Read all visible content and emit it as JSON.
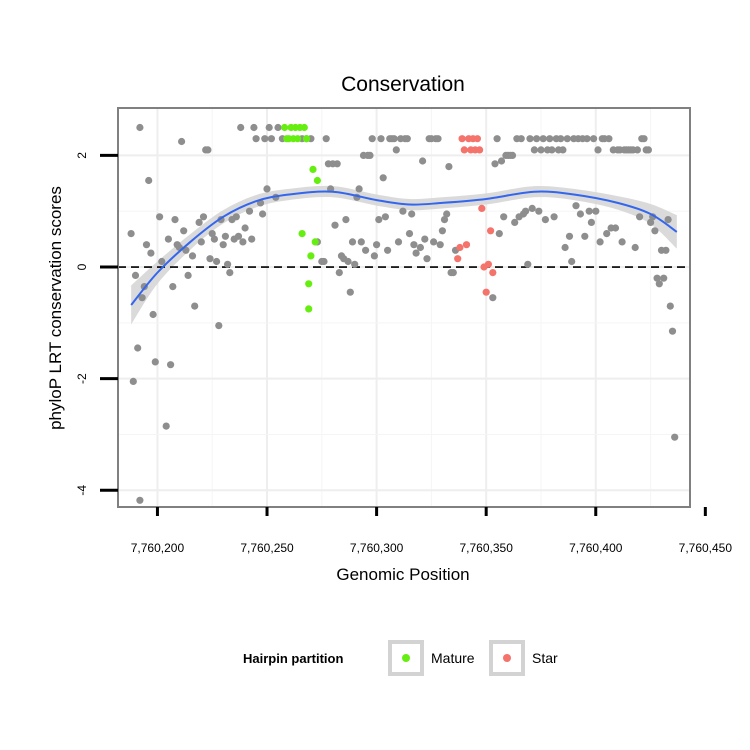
{
  "chart_data": {
    "type": "scatter",
    "title": "Conservation",
    "xlabel": "Genomic Position",
    "ylabel": "phyloP LRT conservation scores",
    "xlim": [
      7760182,
      7760443
    ],
    "ylim": [
      -4.3,
      2.85
    ],
    "x_ticks": [
      7760200,
      7760250,
      7760300,
      7760350,
      7760400,
      7760450
    ],
    "x_tick_labels": [
      "7,760,200",
      "7,760,250",
      "7,760,300",
      "7,760,350",
      "7,760,400",
      "7,760,450"
    ],
    "y_ticks": [
      -4,
      -2,
      0,
      2
    ],
    "y_tick_labels": [
      "-4",
      "-2",
      "0",
      "2"
    ],
    "grid": true,
    "reference_line": {
      "y": 0,
      "style": "dashed"
    },
    "legend": {
      "title": "Hairpin partition",
      "position": "bottom",
      "entries": [
        {
          "label": "Mature",
          "color": "#66ee11"
        },
        {
          "label": "Star",
          "color": "#f4736b"
        }
      ]
    },
    "colors": {
      "other": "#8e8e8e",
      "mature": "#66ee11",
      "star": "#f4736b",
      "smooth": "#3366ee",
      "ribbon": "#d3d3d3",
      "panel_border": "#808080"
    },
    "series": [
      {
        "group": "other",
        "points": [
          [
            7760188,
            0.6
          ],
          [
            7760189,
            -2.05
          ],
          [
            7760190,
            -0.15
          ],
          [
            7760191,
            -1.45
          ],
          [
            7760192,
            2.5
          ],
          [
            7760192,
            -4.18
          ],
          [
            7760193,
            -0.55
          ],
          [
            7760194,
            -0.35
          ],
          [
            7760195,
            0.4
          ],
          [
            7760196,
            1.55
          ],
          [
            7760197,
            0.25
          ],
          [
            7760198,
            -0.85
          ],
          [
            7760199,
            -1.7
          ],
          [
            7760201,
            0.9
          ],
          [
            7760202,
            0.1
          ],
          [
            7760204,
            -2.85
          ],
          [
            7760205,
            0.5
          ],
          [
            7760206,
            -1.75
          ],
          [
            7760207,
            -0.35
          ],
          [
            7760208,
            0.85
          ],
          [
            7760209,
            0.4
          ],
          [
            7760210,
            0.35
          ],
          [
            7760211,
            2.25
          ],
          [
            7760212,
            0.65
          ],
          [
            7760213,
            0.3
          ],
          [
            7760214,
            -0.15
          ],
          [
            7760216,
            0.2
          ],
          [
            7760217,
            -0.7
          ],
          [
            7760219,
            0.8
          ],
          [
            7760220,
            0.45
          ],
          [
            7760221,
            0.9
          ],
          [
            7760222,
            2.1
          ],
          [
            7760223,
            2.1
          ],
          [
            7760224,
            0.15
          ],
          [
            7760225,
            0.6
          ],
          [
            7760226,
            0.5
          ],
          [
            7760227,
            0.1
          ],
          [
            7760228,
            -1.05
          ],
          [
            7760229,
            0.85
          ],
          [
            7760230,
            0.4
          ],
          [
            7760231,
            0.55
          ],
          [
            7760232,
            0.05
          ],
          [
            7760233,
            -0.1
          ],
          [
            7760234,
            0.85
          ],
          [
            7760235,
            0.5
          ],
          [
            7760236,
            0.9
          ],
          [
            7760237,
            0.55
          ],
          [
            7760238,
            2.5
          ],
          [
            7760239,
            0.45
          ],
          [
            7760240,
            0.7
          ],
          [
            7760242,
            1.0
          ],
          [
            7760243,
            0.5
          ],
          [
            7760244,
            2.5
          ],
          [
            7760245,
            2.3
          ],
          [
            7760247,
            1.15
          ],
          [
            7760248,
            0.95
          ],
          [
            7760249,
            2.3
          ],
          [
            7760250,
            1.4
          ],
          [
            7760251,
            2.5
          ],
          [
            7760252,
            2.3
          ],
          [
            7760254,
            1.25
          ],
          [
            7760255,
            2.5
          ],
          [
            7760257,
            2.3
          ],
          [
            7760266,
            2.3
          ],
          [
            7760268,
            2.3
          ],
          [
            7760270,
            2.3
          ],
          [
            7760273,
            0.45
          ],
          [
            7760275,
            0.1
          ],
          [
            7760276,
            0.1
          ],
          [
            7760277,
            2.3
          ],
          [
            7760278,
            1.85
          ],
          [
            7760279,
            1.4
          ],
          [
            7760280,
            1.85
          ],
          [
            7760281,
            0.75
          ],
          [
            7760282,
            1.85
          ],
          [
            7760283,
            -0.1
          ],
          [
            7760284,
            0.2
          ],
          [
            7760285,
            0.15
          ],
          [
            7760286,
            0.85
          ],
          [
            7760287,
            0.1
          ],
          [
            7760288,
            -0.45
          ],
          [
            7760289,
            0.45
          ],
          [
            7760290,
            0.05
          ],
          [
            7760291,
            1.25
          ],
          [
            7760292,
            1.4
          ],
          [
            7760293,
            0.45
          ],
          [
            7760294,
            2.0
          ],
          [
            7760295,
            0.3
          ],
          [
            7760296,
            2.0
          ],
          [
            7760297,
            2.0
          ],
          [
            7760298,
            2.3
          ],
          [
            7760299,
            0.2
          ],
          [
            7760300,
            0.4
          ],
          [
            7760301,
            0.85
          ],
          [
            7760302,
            2.3
          ],
          [
            7760303,
            1.6
          ],
          [
            7760304,
            0.9
          ],
          [
            7760305,
            0.3
          ],
          [
            7760306,
            2.3
          ],
          [
            7760307,
            2.3
          ],
          [
            7760308,
            2.3
          ],
          [
            7760309,
            2.1
          ],
          [
            7760310,
            0.45
          ],
          [
            7760311,
            2.3
          ],
          [
            7760312,
            1.0
          ],
          [
            7760313,
            2.3
          ],
          [
            7760314,
            2.3
          ],
          [
            7760315,
            0.6
          ],
          [
            7760316,
            0.95
          ],
          [
            7760317,
            0.4
          ],
          [
            7760318,
            0.25
          ],
          [
            7760320,
            0.35
          ],
          [
            7760321,
            1.9
          ],
          [
            7760322,
            0.5
          ],
          [
            7760323,
            0.15
          ],
          [
            7760324,
            2.3
          ],
          [
            7760325,
            2.3
          ],
          [
            7760326,
            0.45
          ],
          [
            7760327,
            2.3
          ],
          [
            7760328,
            2.3
          ],
          [
            7760329,
            0.4
          ],
          [
            7760330,
            0.65
          ],
          [
            7760331,
            0.85
          ],
          [
            7760332,
            0.95
          ],
          [
            7760333,
            1.8
          ],
          [
            7760334,
            -0.1
          ],
          [
            7760335,
            -0.1
          ],
          [
            7760336,
            0.3
          ],
          [
            7760353,
            -0.55
          ],
          [
            7760354,
            1.85
          ],
          [
            7760355,
            2.3
          ],
          [
            7760356,
            0.6
          ],
          [
            7760357,
            1.9
          ],
          [
            7760358,
            0.9
          ],
          [
            7760359,
            2.0
          ],
          [
            7760360,
            2.0
          ],
          [
            7760361,
            2.0
          ],
          [
            7760362,
            2.0
          ],
          [
            7760363,
            0.8
          ],
          [
            7760364,
            2.3
          ],
          [
            7760365,
            0.9
          ],
          [
            7760366,
            2.3
          ],
          [
            7760367,
            0.95
          ],
          [
            7760368,
            1.0
          ],
          [
            7760369,
            0.05
          ],
          [
            7760370,
            2.3
          ],
          [
            7760371,
            1.05
          ],
          [
            7760372,
            2.1
          ],
          [
            7760373,
            2.3
          ],
          [
            7760374,
            1.0
          ],
          [
            7760375,
            2.1
          ],
          [
            7760376,
            2.3
          ],
          [
            7760377,
            0.85
          ],
          [
            7760378,
            2.1
          ],
          [
            7760379,
            2.3
          ],
          [
            7760380,
            2.1
          ],
          [
            7760381,
            0.9
          ],
          [
            7760382,
            2.3
          ],
          [
            7760383,
            2.1
          ],
          [
            7760384,
            2.3
          ],
          [
            7760385,
            2.1
          ],
          [
            7760386,
            0.35
          ],
          [
            7760387,
            2.3
          ],
          [
            7760388,
            0.55
          ],
          [
            7760389,
            0.1
          ],
          [
            7760390,
            2.3
          ],
          [
            7760391,
            1.1
          ],
          [
            7760392,
            2.3
          ],
          [
            7760393,
            0.95
          ],
          [
            7760394,
            2.3
          ],
          [
            7760395,
            0.55
          ],
          [
            7760396,
            2.3
          ],
          [
            7760397,
            1.0
          ],
          [
            7760398,
            0.8
          ],
          [
            7760399,
            2.3
          ],
          [
            7760400,
            1.0
          ],
          [
            7760401,
            2.1
          ],
          [
            7760402,
            0.45
          ],
          [
            7760403,
            2.3
          ],
          [
            7760404,
            2.3
          ],
          [
            7760405,
            0.6
          ],
          [
            7760406,
            2.3
          ],
          [
            7760407,
            0.7
          ],
          [
            7760408,
            2.1
          ],
          [
            7760409,
            0.7
          ],
          [
            7760410,
            2.1
          ],
          [
            7760411,
            2.1
          ],
          [
            7760412,
            0.45
          ],
          [
            7760413,
            2.1
          ],
          [
            7760414,
            2.1
          ],
          [
            7760415,
            2.1
          ],
          [
            7760416,
            2.1
          ],
          [
            7760417,
            2.1
          ],
          [
            7760418,
            0.35
          ],
          [
            7760419,
            2.1
          ],
          [
            7760420,
            0.9
          ],
          [
            7760421,
            2.3
          ],
          [
            7760422,
            2.3
          ],
          [
            7760423,
            2.1
          ],
          [
            7760424,
            2.1
          ],
          [
            7760425,
            0.8
          ],
          [
            7760426,
            0.9
          ],
          [
            7760427,
            0.65
          ],
          [
            7760428,
            -0.2
          ],
          [
            7760429,
            -0.3
          ],
          [
            7760430,
            0.3
          ],
          [
            7760431,
            -0.2
          ],
          [
            7760432,
            0.3
          ],
          [
            7760433,
            0.85
          ],
          [
            7760434,
            -0.7
          ],
          [
            7760435,
            -1.15
          ],
          [
            7760436,
            -3.05
          ]
        ]
      },
      {
        "group": "mature",
        "name": "Mature",
        "points": [
          [
            7760258,
            2.5
          ],
          [
            7760259,
            2.3
          ],
          [
            7760260,
            2.3
          ],
          [
            7760261,
            2.5
          ],
          [
            7760262,
            2.3
          ],
          [
            7760263,
            2.5
          ],
          [
            7760264,
            2.3
          ],
          [
            7760265,
            2.5
          ],
          [
            7760266,
            0.6
          ],
          [
            7760267,
            2.5
          ],
          [
            7760268,
            2.3
          ],
          [
            7760269,
            -0.3
          ],
          [
            7760269,
            -0.75
          ],
          [
            7760270,
            0.2
          ],
          [
            7760271,
            1.75
          ],
          [
            7760272,
            0.45
          ],
          [
            7760273,
            1.55
          ]
        ]
      },
      {
        "group": "star",
        "name": "Star",
        "points": [
          [
            7760337,
            0.15
          ],
          [
            7760338,
            0.35
          ],
          [
            7760339,
            2.3
          ],
          [
            7760340,
            2.1
          ],
          [
            7760341,
            0.4
          ],
          [
            7760342,
            2.3
          ],
          [
            7760343,
            2.1
          ],
          [
            7760344,
            2.3
          ],
          [
            7760345,
            2.1
          ],
          [
            7760346,
            2.3
          ],
          [
            7760347,
            2.1
          ],
          [
            7760348,
            1.05
          ],
          [
            7760349,
            0.0
          ],
          [
            7760350,
            -0.45
          ],
          [
            7760351,
            0.05
          ],
          [
            7760352,
            0.65
          ],
          [
            7760353,
            -0.1
          ]
        ]
      }
    ],
    "smooth_fit": {
      "x": [
        7760188,
        7760200,
        7760215,
        7760230,
        7760245,
        7760260,
        7760280,
        7760300,
        7760315,
        7760330,
        7760350,
        7760372,
        7760390,
        7760410,
        7760425,
        7760437
      ],
      "y": [
        -0.68,
        -0.1,
        0.45,
        0.9,
        1.18,
        1.3,
        1.35,
        1.2,
        1.12,
        1.15,
        1.22,
        1.35,
        1.3,
        1.15,
        0.95,
        0.63
      ],
      "ribbon_halfwidth": [
        0.35,
        0.2,
        0.14,
        0.12,
        0.11,
        0.1,
        0.1,
        0.1,
        0.1,
        0.1,
        0.1,
        0.1,
        0.1,
        0.12,
        0.18,
        0.3
      ]
    }
  }
}
